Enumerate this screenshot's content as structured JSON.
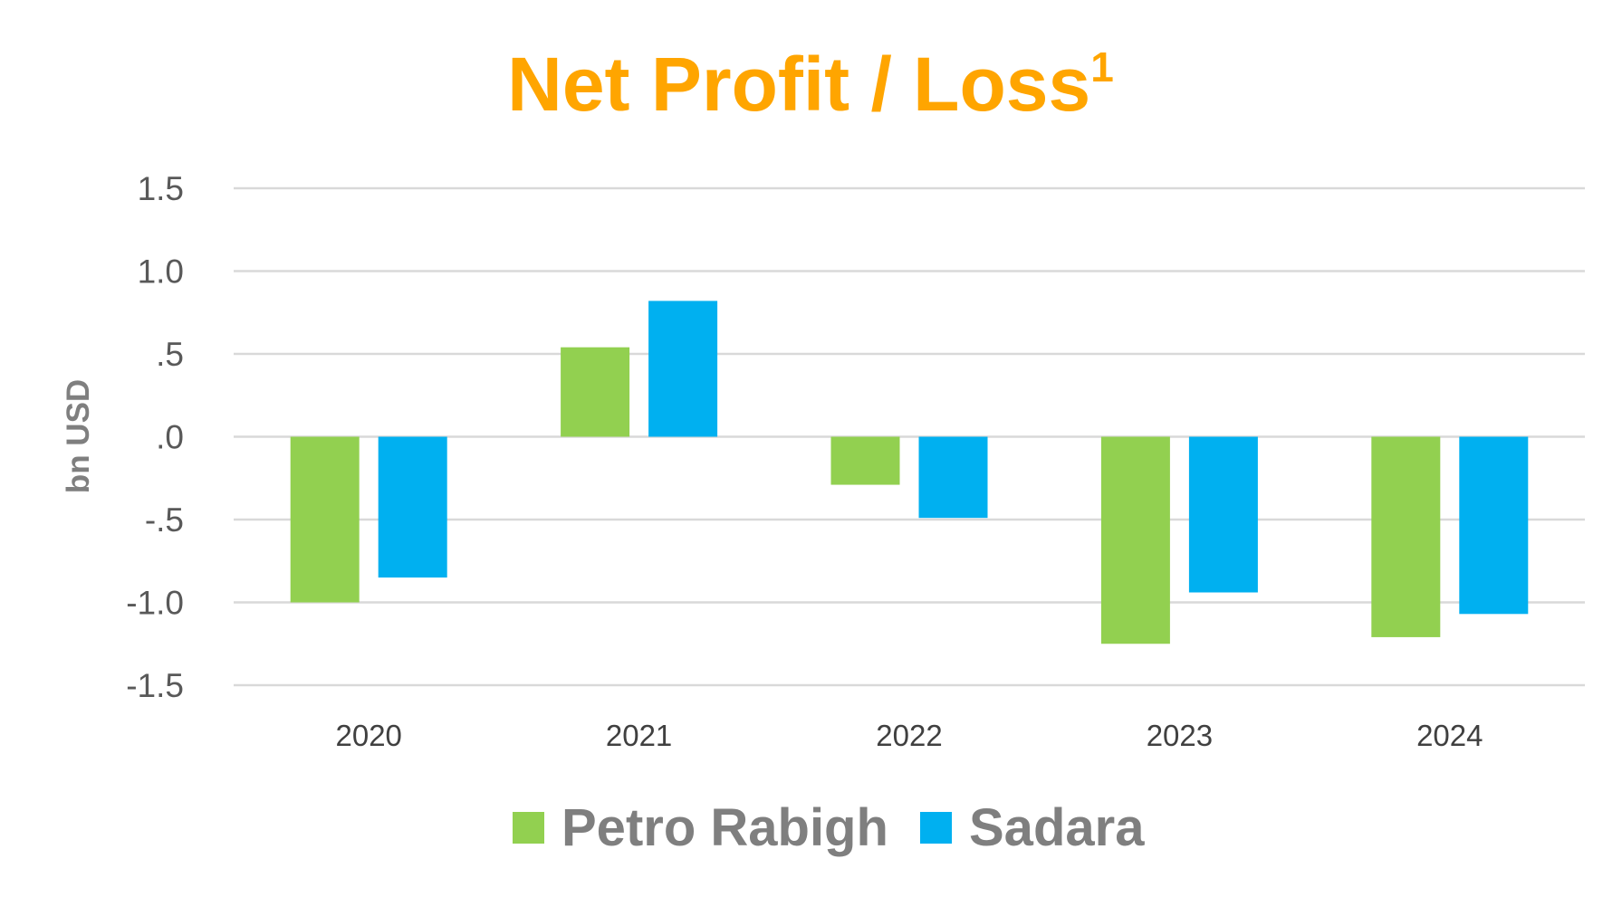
{
  "chart_data": {
    "type": "bar",
    "title": "Net Profit / Loss",
    "title_superscript": "1",
    "title_color": "#FFA500",
    "xlabel": "",
    "ylabel": "bn USD",
    "ylim": [
      -1.5,
      1.5
    ],
    "y_ticks": [
      1.5,
      1.0,
      0.5,
      0.0,
      -0.5,
      -1.0,
      -1.5
    ],
    "y_tick_labels": [
      "1.5",
      "1.0",
      ".5",
      ".0",
      "-.5",
      "-1.0",
      "-1.5"
    ],
    "grid": true,
    "categories": [
      "2020",
      "2021",
      "2022",
      "2023",
      "2024"
    ],
    "series": [
      {
        "name": "Petro Rabigh",
        "color": "#92D050",
        "values": [
          -1.0,
          0.54,
          -0.29,
          -1.25,
          -1.21
        ]
      },
      {
        "name": "Sadara",
        "color": "#00B0F0",
        "values": [
          -0.85,
          0.82,
          -0.49,
          -0.94,
          -1.07
        ]
      }
    ],
    "legend_position": "bottom-center"
  }
}
